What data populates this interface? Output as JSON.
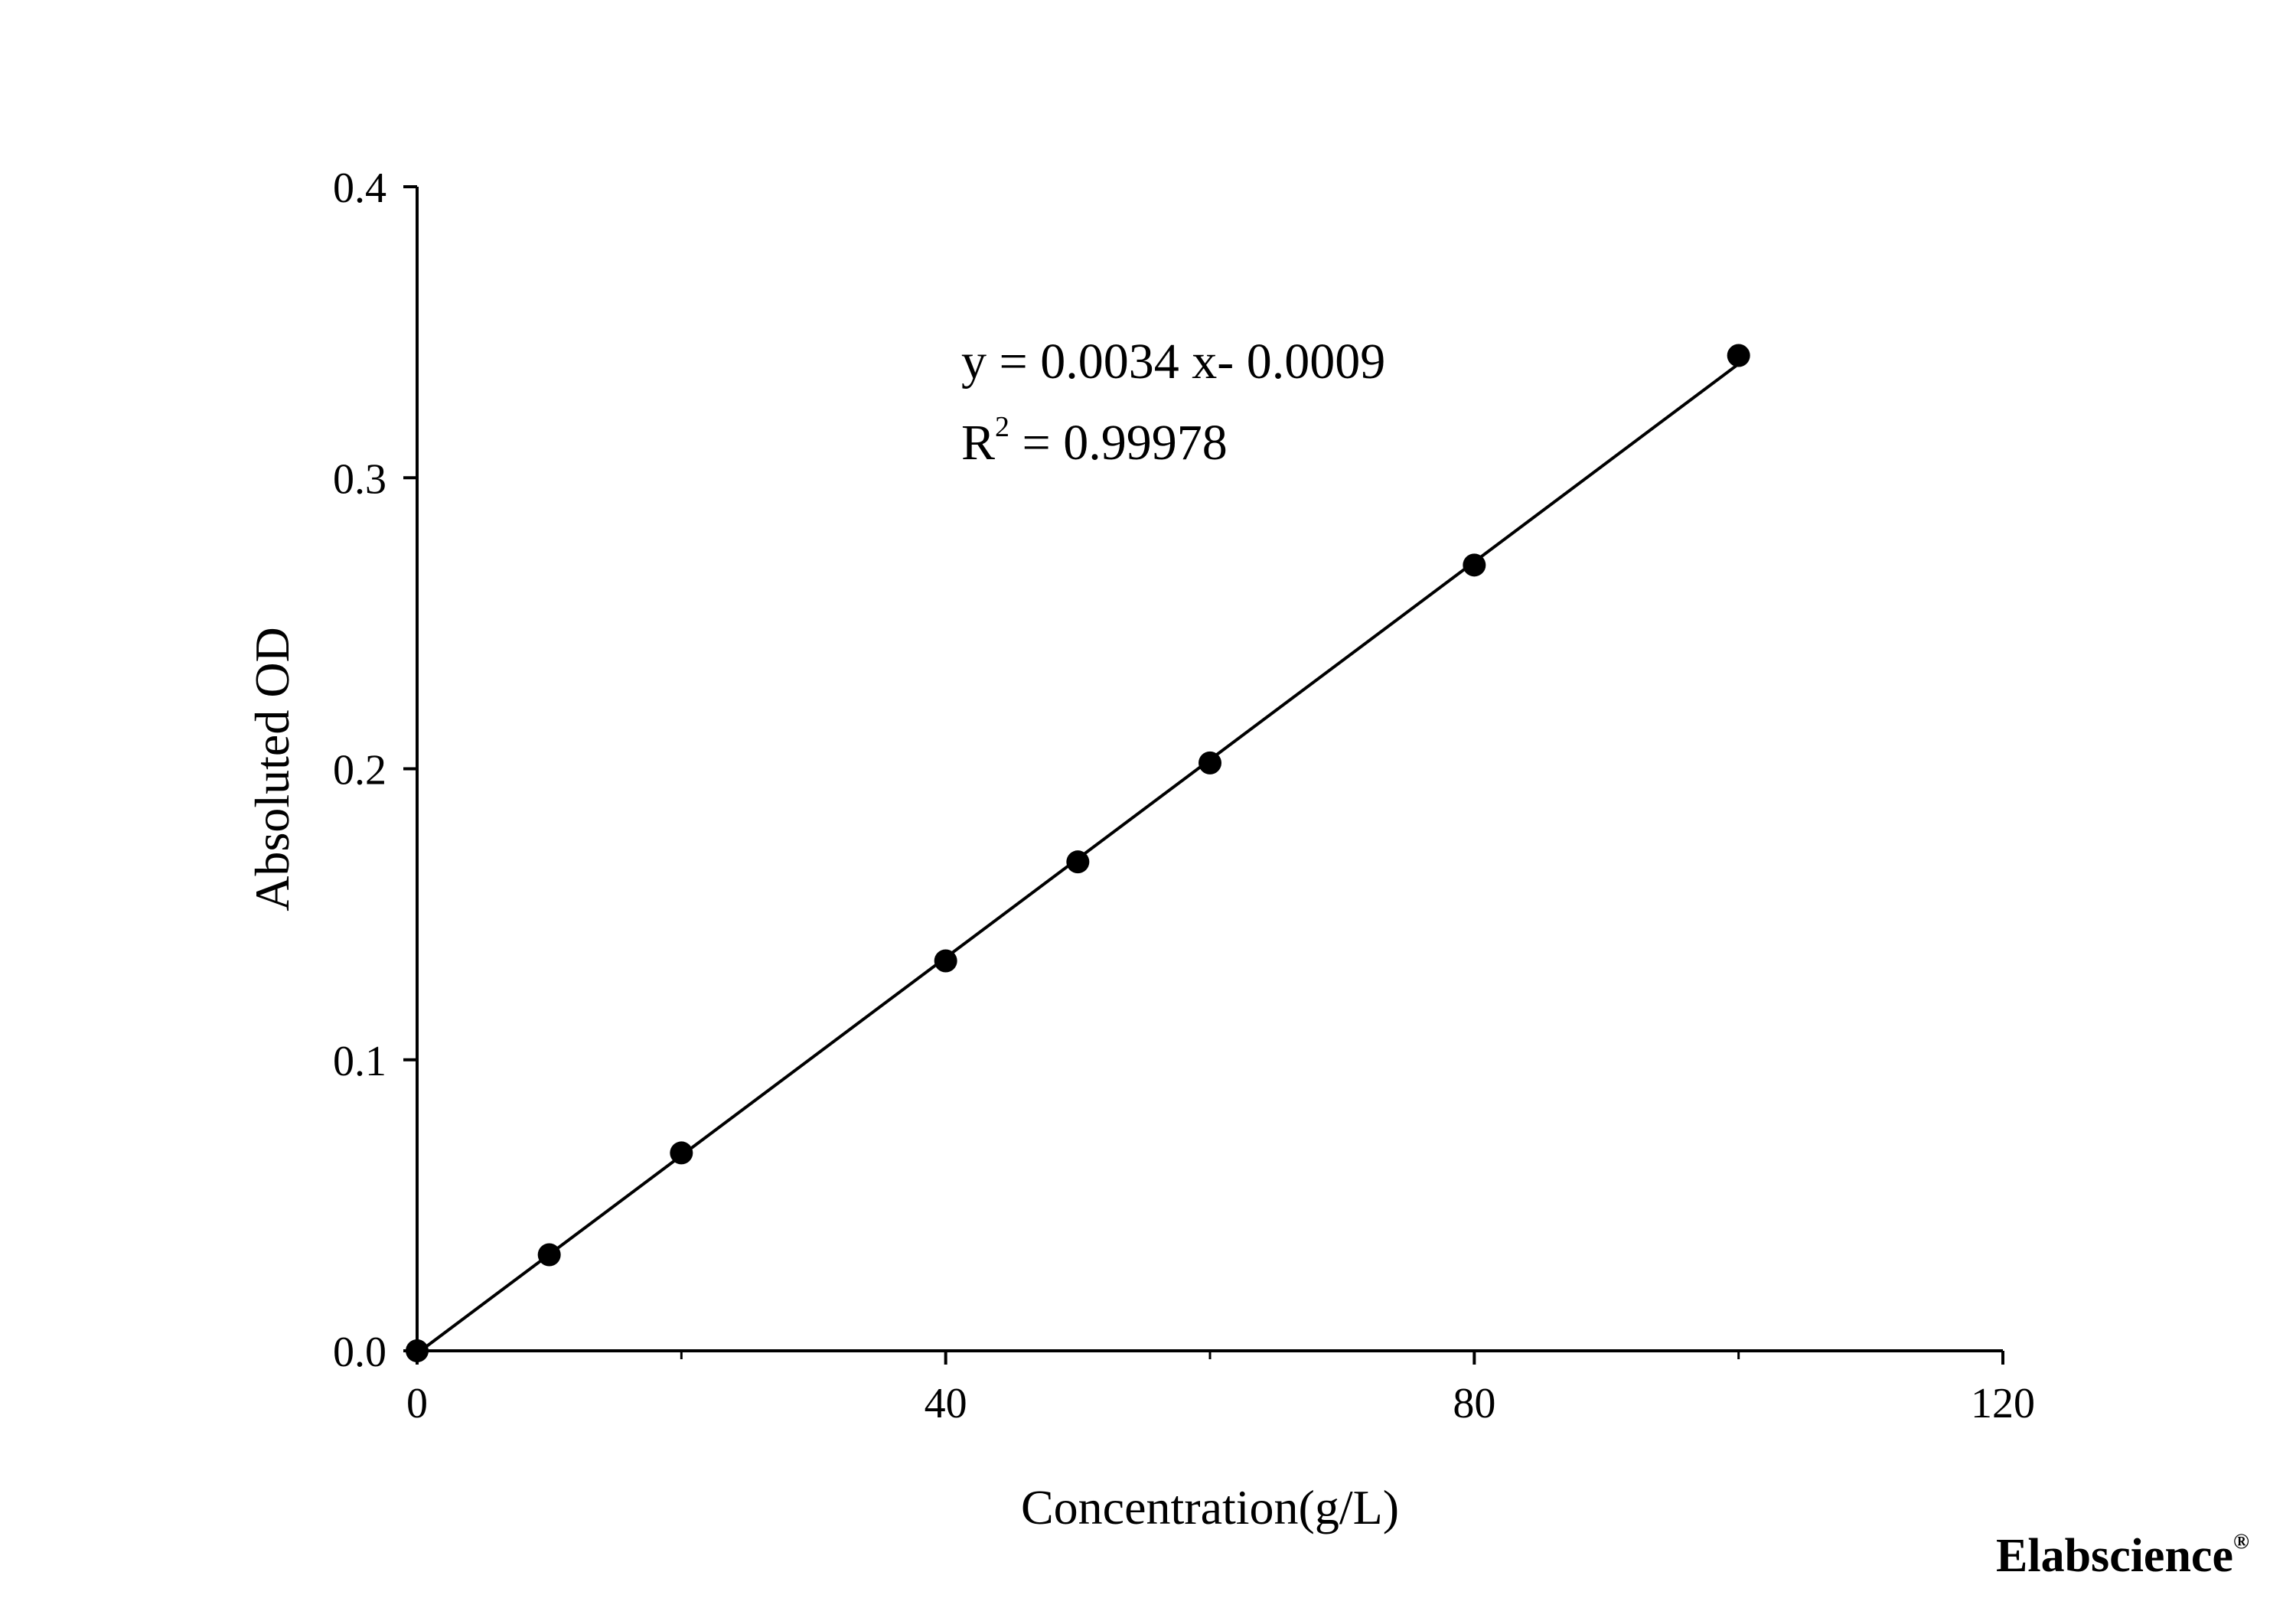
{
  "chart_data": {
    "type": "scatter",
    "title": "",
    "xlabel": "Concentration(g/L)",
    "ylabel": "Absoluted OD",
    "xlim": [
      0,
      120
    ],
    "ylim": [
      0,
      0.4
    ],
    "xticks": [
      0,
      40,
      80,
      120
    ],
    "xtick_labels": [
      "0",
      "40",
      "80",
      "120"
    ],
    "xminor_ticks": [
      20,
      60,
      100
    ],
    "yticks": [
      0,
      0.1,
      0.2,
      0.3,
      0.4
    ],
    "ytick_labels": [
      "0.0",
      "0.1",
      "0.2",
      "0.3",
      "0.4"
    ],
    "grid": false,
    "legend": "none",
    "series": [
      {
        "points": [
          {
            "x": 0,
            "y": 0.0
          },
          {
            "x": 10,
            "y": 0.033
          },
          {
            "x": 20,
            "y": 0.068
          },
          {
            "x": 40,
            "y": 0.134
          },
          {
            "x": 50,
            "y": 0.168
          },
          {
            "x": 60,
            "y": 0.202
          },
          {
            "x": 80,
            "y": 0.27
          },
          {
            "x": 100,
            "y": 0.342
          }
        ],
        "marker": "filled-circle",
        "color": "#000000"
      }
    ],
    "fit_line": {
      "type": "linear",
      "slope": 0.0034,
      "intercept": -0.0009,
      "x_range": [
        0,
        100
      ],
      "color": "#000000"
    },
    "annotations": {
      "equation": "y = 0.0034 x- 0.0009",
      "r2_prefix": "R",
      "r2_superscript": "2",
      "r2_value": " = 0.99978"
    }
  },
  "watermark": {
    "text": "Elabscience",
    "mark": "®"
  }
}
